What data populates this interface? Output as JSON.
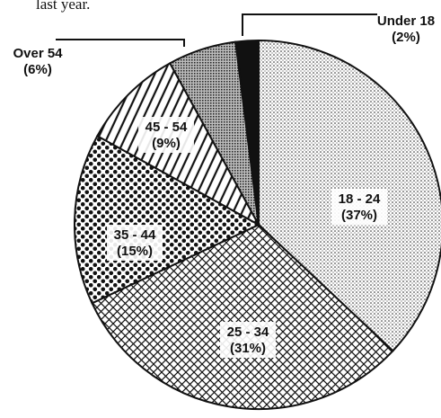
{
  "chart_data": {
    "type": "pie",
    "title": "last year.",
    "categories": [
      "18 - 24",
      "25 - 34",
      "35 - 44",
      "45 - 54",
      "Over 54",
      "Under 18"
    ],
    "values": [
      37,
      31,
      15,
      9,
      6,
      2
    ],
    "value_labels": [
      "(37%)",
      "(31%)",
      "(15%)",
      "(9%)",
      "(6%)",
      "(2%)"
    ]
  }
}
